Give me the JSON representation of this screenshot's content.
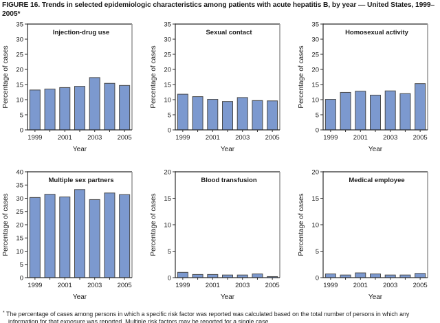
{
  "figure": {
    "title": "FIGURE 16. Trends in selected epidemiologic characteristics among patients with acute hepatitis B, by year — United States, 1999–2005*",
    "footnote_marker": "*",
    "footnote": "The percentage of cases among persons in which a specific risk factor was reported was calculated based on the total number of persons in which any information for that exposure was reported. Multiple risk factors may be reported for a single case."
  },
  "colors": {
    "bar_fill": "#7C99CF",
    "bar_stroke": "#4A4A4A",
    "axis": "#2B2B2B",
    "frame_top": "#4D4D4D",
    "frame_right": "#9C9C9C",
    "text": "#1A1A1A"
  },
  "chart_data": [
    {
      "type": "bar",
      "title": "Injection-drug use",
      "categories": [
        "1999",
        "2000",
        "2001",
        "2002",
        "2003",
        "2004",
        "2005"
      ],
      "values": [
        13.2,
        13.5,
        14.0,
        14.4,
        17.3,
        15.4,
        14.7
      ],
      "xlabel": "Year",
      "ylabel": "Percentage of cases",
      "ylim": [
        0,
        35
      ],
      "ytick_step": 5,
      "xtick_labels_shown": [
        "1999",
        "2001",
        "2003",
        "2005"
      ],
      "grid": false,
      "legend": "none"
    },
    {
      "type": "bar",
      "title": "Sexual contact",
      "categories": [
        "1999",
        "2000",
        "2001",
        "2002",
        "2003",
        "2004",
        "2005"
      ],
      "values": [
        11.8,
        11.0,
        10.1,
        9.4,
        10.7,
        9.7,
        9.6
      ],
      "xlabel": "Year",
      "ylabel": "Percentage of cases",
      "ylim": [
        0,
        35
      ],
      "ytick_step": 5,
      "xtick_labels_shown": [
        "1999",
        "2001",
        "2003",
        "2005"
      ],
      "grid": false,
      "legend": "none"
    },
    {
      "type": "bar",
      "title": "Homosexual activity",
      "categories": [
        "1999",
        "2000",
        "2001",
        "2002",
        "2003",
        "2004",
        "2005"
      ],
      "values": [
        10.1,
        12.4,
        12.8,
        11.5,
        12.9,
        12.0,
        15.3
      ],
      "xlabel": "Year",
      "ylabel": "Percentage of cases",
      "ylim": [
        0,
        35
      ],
      "ytick_step": 5,
      "xtick_labels_shown": [
        "1999",
        "2001",
        "2003",
        "2005"
      ],
      "grid": false,
      "legend": "none"
    },
    {
      "type": "bar",
      "title": "Multiple sex partners",
      "categories": [
        "1999",
        "2000",
        "2001",
        "2002",
        "2003",
        "2004",
        "2005"
      ],
      "values": [
        30.3,
        31.5,
        30.5,
        33.3,
        29.5,
        32.0,
        31.4
      ],
      "xlabel": "Year",
      "ylabel": "Percentage of cases",
      "ylim": [
        0,
        40
      ],
      "ytick_step": 5,
      "xtick_labels_shown": [
        "1999",
        "2001",
        "2003",
        "2005"
      ],
      "grid": false,
      "legend": "none"
    },
    {
      "type": "bar",
      "title": "Blood transfusion",
      "categories": [
        "1999",
        "2000",
        "2001",
        "2002",
        "2003",
        "2004",
        "2005"
      ],
      "values": [
        1.0,
        0.6,
        0.6,
        0.5,
        0.5,
        0.7,
        0.2
      ],
      "xlabel": "Year",
      "ylabel": "Percentage of cases",
      "ylim": [
        0,
        20
      ],
      "ytick_step": 5,
      "xtick_labels_shown": [
        "1999",
        "2001",
        "2003",
        "2005"
      ],
      "grid": false,
      "legend": "none"
    },
    {
      "type": "bar",
      "title": "Medical employee",
      "categories": [
        "1999",
        "2000",
        "2001",
        "2002",
        "2003",
        "2004",
        "2005"
      ],
      "values": [
        0.7,
        0.5,
        0.9,
        0.7,
        0.5,
        0.5,
        0.8
      ],
      "xlabel": "Year",
      "ylabel": "Percentage of cases",
      "ylim": [
        0,
        20
      ],
      "ytick_step": 5,
      "xtick_labels_shown": [
        "1999",
        "2001",
        "2003",
        "2005"
      ],
      "grid": false,
      "legend": "none"
    }
  ]
}
